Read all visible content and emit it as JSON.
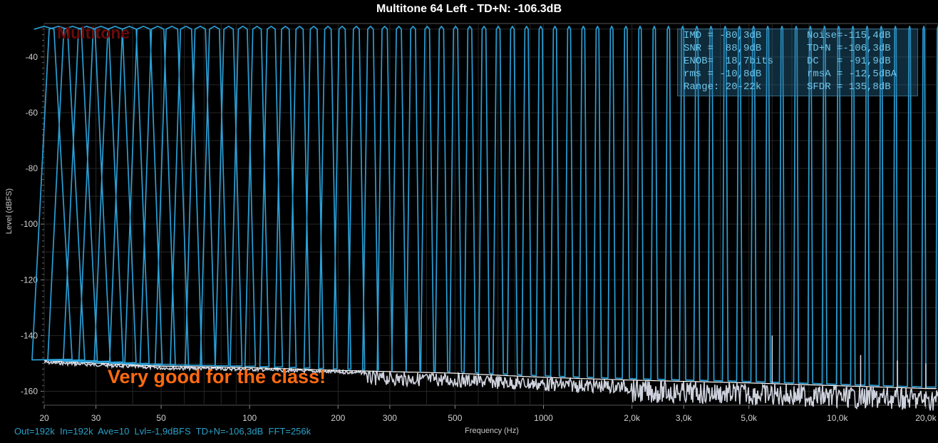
{
  "window": {
    "title": "Multitone 64 Left - TD+N: -106.3dB"
  },
  "watermark": "Multitone",
  "stats": [
    [
      "IMD = -80,3dB",
      "Noise=-115,4dB"
    ],
    [
      "SNR =  88,9dB",
      "TD+N =-106,3dB"
    ],
    [
      "ENOB=  18,7bits",
      "DC   = -91,9dB"
    ],
    [
      "rms = -10,8dB",
      "rmsA = -12,5dBA"
    ],
    [
      "Range: 20-22k",
      "SFDR = 135,8dB"
    ]
  ],
  "annotation": "Very good for the class!",
  "status_bar": "Out=192k  In=192k  Ave=10  Lvl=-1,9dBFS  TD+N=-106,3dB  FFT=256k",
  "colors": {
    "spectrum": "#2a9fd6",
    "noise": "#d8dce8",
    "distortion_floor": "#ffffff",
    "grid": "#262626",
    "annotation": "#ff6a10"
  },
  "chart_data": {
    "type": "line",
    "title": "Multitone 64 Left - TD+N: -106.3dB",
    "xlabel": "Frequency (Hz)",
    "ylabel": "Level (dBFS)",
    "x_scale": "log",
    "xlim": [
      20,
      22000
    ],
    "ylim": [
      -165,
      -28
    ],
    "grid": true,
    "x_ticks": [
      20,
      30,
      50,
      100,
      200,
      300,
      500,
      1000,
      2000,
      3000,
      5000,
      10000,
      20000
    ],
    "x_tick_labels": [
      "20",
      "30",
      "50",
      "100",
      "200",
      "300",
      "500",
      "1000",
      "2,0k",
      "3,0k",
      "5,0k",
      "10,0k",
      "20,0k"
    ],
    "y_ticks": [
      -40,
      -60,
      -80,
      -100,
      -120,
      -140,
      -160
    ],
    "y_tick_labels": [
      "-40",
      "-60",
      "-80",
      "-100",
      "-120",
      "-140",
      "-160"
    ],
    "tone_count": 64,
    "tone_level_db": -29,
    "tone_freq_range_hz": [
      20,
      22000
    ],
    "series": [
      {
        "name": "spectrum",
        "description_points": "64 tones at about -29 dBFS, log-spaced 20 Hz - 22 kHz"
      },
      {
        "name": "distortion",
        "x": [
          20,
          50,
          100,
          200,
          500,
          1000,
          2000,
          5000,
          10000,
          20000,
          22000
        ],
        "y": [
          -149,
          -151,
          -151.5,
          -152.5,
          -153.5,
          -155,
          -156,
          -157,
          -158,
          -159,
          -159
        ]
      }
    ],
    "spurs": [
      {
        "x": 6000,
        "y": -140
      },
      {
        "x": 12000,
        "y": -147
      },
      {
        "x": 16000,
        "y": -149
      },
      {
        "x": 20000,
        "y": -150
      }
    ]
  }
}
